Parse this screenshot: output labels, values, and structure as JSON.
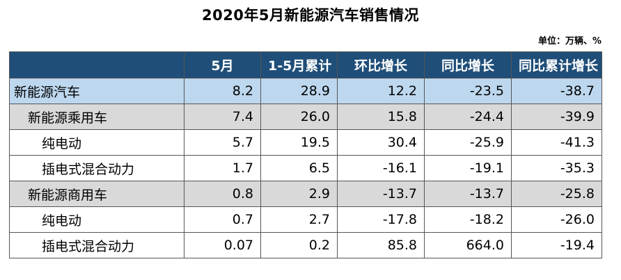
{
  "title": "2020年5月新能源汽车销售情况",
  "unit": "单位：万辆、%",
  "table": {
    "headers": [
      "",
      "5月",
      "1-5月累计",
      "环比增长",
      "同比增长",
      "同比累计增长"
    ],
    "rows": [
      {
        "label": "新能源汽车",
        "values": [
          "8.2",
          "28.9",
          "12.2",
          "-23.5",
          "-38.7"
        ]
      },
      {
        "label": "新能源乘用车",
        "values": [
          "7.4",
          "26.0",
          "15.8",
          "-24.4",
          "-39.9"
        ]
      },
      {
        "label": "纯电动",
        "values": [
          "5.7",
          "19.5",
          "30.4",
          "-25.9",
          "-41.3"
        ]
      },
      {
        "label": "插电式混合动力",
        "values": [
          "1.7",
          "6.5",
          "-16.1",
          "-19.1",
          "-35.3"
        ]
      },
      {
        "label": "新能源商用车",
        "values": [
          "0.8",
          "2.9",
          "-13.7",
          "-13.7",
          "-25.8"
        ]
      },
      {
        "label": "纯电动",
        "values": [
          "0.7",
          "2.7",
          "-17.8",
          "-18.2",
          "-26.0"
        ]
      },
      {
        "label": "插电式混合动力",
        "values": [
          "0.07",
          "0.2",
          "85.8",
          "664.0",
          "-19.4"
        ]
      }
    ]
  },
  "colors": {
    "header_bg": "#1f4e79",
    "total_row_bg": "#bdd7ee",
    "group_row_bg": "#d9d9d9",
    "item_row_bg": "#ffffff"
  }
}
